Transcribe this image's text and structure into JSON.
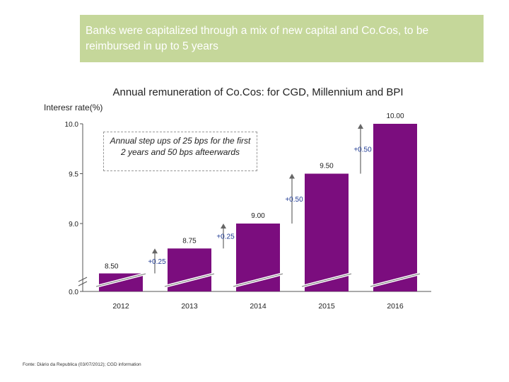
{
  "banner": {
    "text": "Banks were capitalized through a mix of new capital and Co.Cos, to be reimbursed in up to 5 years"
  },
  "chart_data": {
    "type": "bar",
    "title": "Annual remuneration of Co.Cos: for CGD, Millennium and BPI",
    "ylabel": "Interesr rate(%)",
    "xlabel": "",
    "categories": [
      "2012",
      "2013",
      "2014",
      "2015",
      "2016"
    ],
    "values": [
      8.5,
      8.75,
      9.0,
      9.5,
      10.0
    ],
    "value_labels": [
      "8.50",
      "8.75",
      "9.00",
      "9.50",
      "10.00"
    ],
    "ylim": [
      8.25,
      10.0
    ],
    "axis_break": true,
    "yticks": [
      {
        "value": 0.0,
        "label": "0.0"
      },
      {
        "value": 9.0,
        "label": "9.0"
      },
      {
        "value": 9.5,
        "label": "9.5"
      },
      {
        "value": 10.0,
        "label": "10.0"
      }
    ],
    "step_labels": [
      "+0.25",
      "+0.25",
      "+0.50",
      "+0.50"
    ],
    "annotation": "Annual step ups of 25 bps for the first  2 years and  50  bps afteerwards",
    "bar_color": "#7b0d7e",
    "step_color": "#1f3a93",
    "grid": false
  },
  "source": "Fonte: Diário da Republica (03/07/2012); CGD information"
}
